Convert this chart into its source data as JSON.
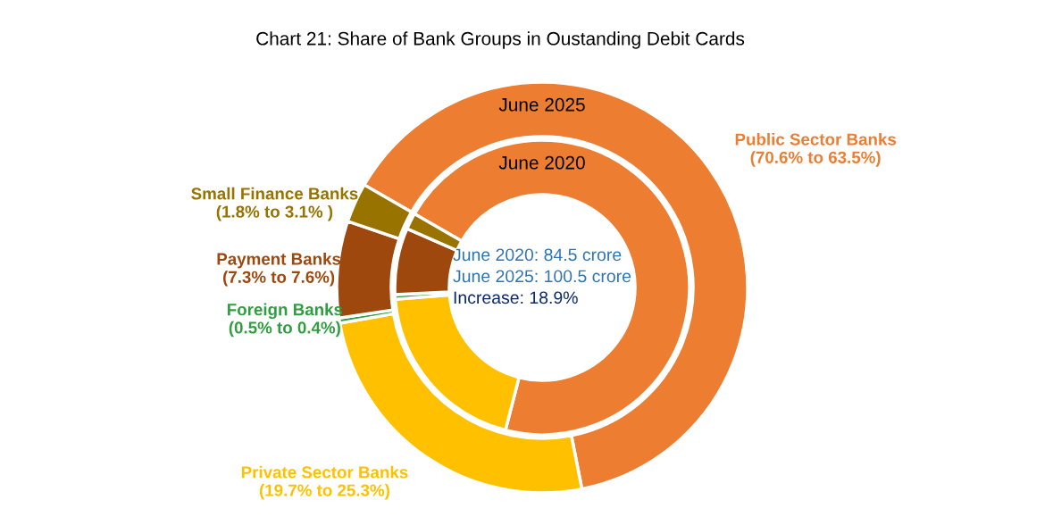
{
  "chart_data": {
    "type": "donut",
    "title": "Chart 21: Share of Bank Groups in Oustanding Debit Cards",
    "categories": [
      "Public Sector Banks\n(70.6% to 63.5%)",
      "Private Sector Banks\n(19.7% to 25.3%)",
      "Foreign Banks\n(0.5% to 0.4%)",
      "Payment Banks\n(7.3% to 7.6%)",
      "Small Finance Banks\n(1.8% to 3.1% )"
    ],
    "colors": [
      "#ed7d31",
      "#ffc000",
      "#2e9e3e",
      "#9e480e",
      "#997300"
    ],
    "series": [
      {
        "name": "June 2020",
        "values": [
          70.6,
          19.7,
          0.5,
          7.3,
          1.8
        ]
      },
      {
        "name": "June 2025",
        "values": [
          63.5,
          25.3,
          0.4,
          7.6,
          3.1
        ]
      }
    ],
    "annotations": [
      "June 2020: 84.5 crore",
      "June 2025: 100.5 crore",
      "Increase: 18.9%"
    ],
    "legend": false
  }
}
